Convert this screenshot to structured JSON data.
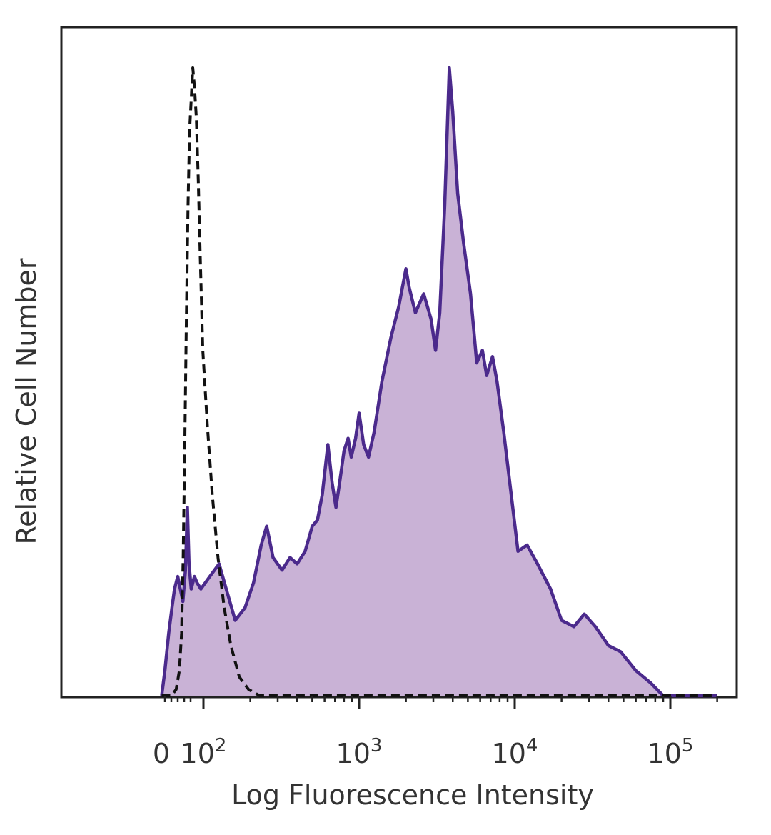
{
  "chart_data": {
    "type": "area",
    "xlabel": "Log Fluorescence Intensity",
    "ylabel": "Relative Cell Number",
    "x_scale": "biexponential (log above 10^2, linear near 0)",
    "x_tick_labels": [
      {
        "value": 0,
        "base": "0",
        "exp": ""
      },
      {
        "value": 100,
        "base": "10",
        "exp": "2"
      },
      {
        "value": 1000,
        "base": "10",
        "exp": "3"
      },
      {
        "value": 10000,
        "base": "10",
        "exp": "4"
      },
      {
        "value": 100000,
        "base": "10",
        "exp": "5"
      }
    ],
    "ylim": [
      0,
      100
    ],
    "grid": false,
    "legend": "none",
    "colors": {
      "stained_line": "#4b2a8c",
      "stained_fill": "#c9b2d6",
      "control_line": "#111111"
    },
    "series": [
      {
        "style": "filled-solid",
        "points": [
          [
            -30,
            0
          ],
          [
            -20,
            4
          ],
          [
            -8,
            10
          ],
          [
            2,
            14
          ],
          [
            10,
            17
          ],
          [
            20,
            19
          ],
          [
            28,
            17
          ],
          [
            36,
            15
          ],
          [
            44,
            20
          ],
          [
            50,
            30
          ],
          [
            55,
            21
          ],
          [
            62,
            17
          ],
          [
            72,
            19
          ],
          [
            80,
            18
          ],
          [
            92,
            17
          ],
          [
            110,
            19
          ],
          [
            126,
            21
          ],
          [
            140,
            17
          ],
          [
            160,
            12
          ],
          [
            185,
            14
          ],
          [
            210,
            18
          ],
          [
            235,
            24
          ],
          [
            255,
            27
          ],
          [
            280,
            22
          ],
          [
            320,
            20
          ],
          [
            360,
            22
          ],
          [
            400,
            21
          ],
          [
            450,
            23
          ],
          [
            500,
            27
          ],
          [
            540,
            28
          ],
          [
            580,
            32
          ],
          [
            630,
            40
          ],
          [
            670,
            34
          ],
          [
            710,
            30
          ],
          [
            750,
            34
          ],
          [
            800,
            39
          ],
          [
            850,
            41
          ],
          [
            890,
            38
          ],
          [
            950,
            41
          ],
          [
            1000,
            45
          ],
          [
            1070,
            40
          ],
          [
            1150,
            38
          ],
          [
            1250,
            42
          ],
          [
            1400,
            50
          ],
          [
            1600,
            57
          ],
          [
            1800,
            62
          ],
          [
            2000,
            68
          ],
          [
            2100,
            65
          ],
          [
            2300,
            61
          ],
          [
            2600,
            64
          ],
          [
            2900,
            60
          ],
          [
            3100,
            55
          ],
          [
            3300,
            61
          ],
          [
            3550,
            78
          ],
          [
            3800,
            100
          ],
          [
            4000,
            93
          ],
          [
            4300,
            80
          ],
          [
            4700,
            72
          ],
          [
            5200,
            64
          ],
          [
            5700,
            53
          ],
          [
            6200,
            55
          ],
          [
            6600,
            51
          ],
          [
            7200,
            54
          ],
          [
            7700,
            50
          ],
          [
            8500,
            42
          ],
          [
            9500,
            32
          ],
          [
            10500,
            23
          ],
          [
            12000,
            24
          ],
          [
            14000,
            21
          ],
          [
            17000,
            17
          ],
          [
            20000,
            12
          ],
          [
            24000,
            11
          ],
          [
            28000,
            13
          ],
          [
            33000,
            11
          ],
          [
            40000,
            8
          ],
          [
            48000,
            7
          ],
          [
            60000,
            4
          ],
          [
            75000,
            2
          ],
          [
            90000,
            0
          ],
          [
            150000,
            0
          ],
          [
            200000,
            0
          ]
        ]
      },
      {
        "style": "dashed",
        "points": [
          [
            -30,
            0
          ],
          [
            0,
            0
          ],
          [
            15,
            1
          ],
          [
            25,
            4
          ],
          [
            32,
            10
          ],
          [
            37,
            22
          ],
          [
            42,
            40
          ],
          [
            47,
            60
          ],
          [
            52,
            78
          ],
          [
            57,
            90
          ],
          [
            62,
            95
          ],
          [
            67,
            100
          ],
          [
            72,
            97
          ],
          [
            78,
            92
          ],
          [
            84,
            82
          ],
          [
            90,
            70
          ],
          [
            98,
            55
          ],
          [
            106,
            43
          ],
          [
            114,
            32
          ],
          [
            124,
            22
          ],
          [
            136,
            14
          ],
          [
            150,
            8
          ],
          [
            170,
            3
          ],
          [
            195,
            1
          ],
          [
            230,
            0
          ],
          [
            400,
            0
          ],
          [
            1000,
            0
          ],
          [
            10000,
            0
          ],
          [
            200000,
            0
          ]
        ]
      }
    ]
  }
}
